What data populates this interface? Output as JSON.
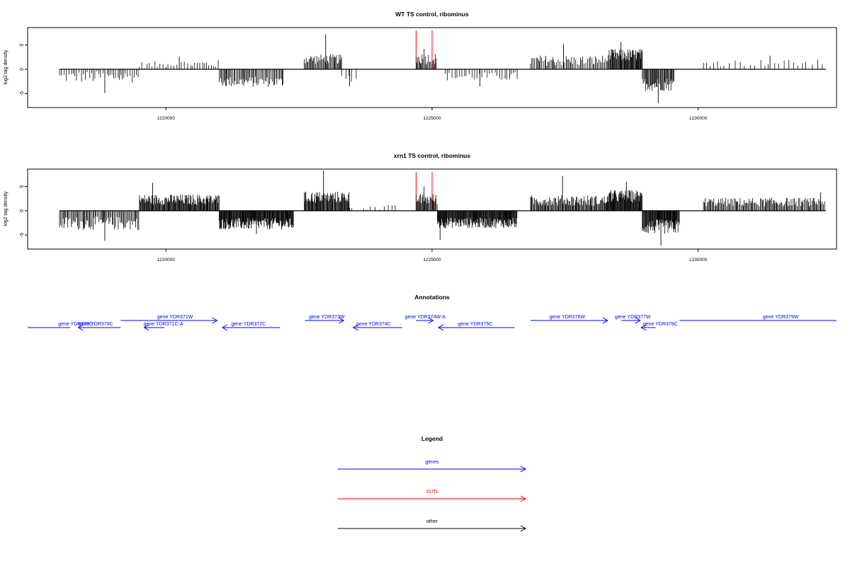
{
  "colors": {
    "gene": "#0000ff",
    "xut": "#ff0000",
    "other": "#000000",
    "axis": "#000000"
  },
  "chart_data": [
    {
      "type": "bar",
      "title": "WT TS control, ribominus",
      "ylabel": "log2 tag density",
      "xlim": [
        1217400,
        1232600
      ],
      "ylim": [
        -7.9,
        8.6
      ],
      "x_ticks": [
        1220000,
        1225000,
        1230000
      ],
      "x_tick_labels": [
        "1220000",
        "1225000",
        "1230000"
      ],
      "y_ticks": [
        -5,
        0,
        5
      ],
      "y_tick_labels": [
        "-5",
        "0",
        "5"
      ],
      "baseline_range": [
        1218000,
        1232400
      ],
      "xut_markers": [
        1224700,
        1225000
      ],
      "segments": [
        {
          "start": 1218000,
          "end": 1219500,
          "mean": -1.6,
          "amp": 1.2,
          "step": 38,
          "peaks": [
            [
              1218850,
              -4.9
            ]
          ]
        },
        {
          "start": 1219500,
          "end": 1220000,
          "mean": 0.9,
          "amp": 0.7,
          "step": 45,
          "peaks": []
        },
        {
          "start": 1220000,
          "end": 1221000,
          "mean": 1.1,
          "amp": 0.8,
          "step": 45,
          "peaks": [
            [
              1220250,
              2.6
            ]
          ]
        },
        {
          "start": 1221000,
          "end": 1222200,
          "mean": -2.6,
          "amp": 1.1,
          "step": 20,
          "peaks": []
        },
        {
          "start": 1222600,
          "end": 1223300,
          "mean": 2.1,
          "amp": 1.0,
          "step": 18,
          "peaks": [
            [
              1223000,
              7.2
            ]
          ]
        },
        {
          "start": 1223300,
          "end": 1223600,
          "mean": -1.8,
          "amp": 0.8,
          "step": 70,
          "peaks": [
            [
              1223450,
              -3.5
            ]
          ]
        },
        {
          "start": 1224700,
          "end": 1225100,
          "mean": 2.2,
          "amp": 1.2,
          "step": 20,
          "peaks": [
            [
              1224850,
              4.2
            ]
          ]
        },
        {
          "start": 1225250,
          "end": 1226600,
          "mean": -1.5,
          "amp": 0.9,
          "step": 45,
          "peaks": [
            [
              1225900,
              -3.5
            ]
          ]
        },
        {
          "start": 1226850,
          "end": 1228300,
          "mean": 1.8,
          "amp": 1.1,
          "step": 25,
          "peaks": [
            [
              1227470,
              5.2
            ]
          ]
        },
        {
          "start": 1228300,
          "end": 1228950,
          "mean": 2.9,
          "amp": 1.3,
          "step": 12,
          "peaks": [
            [
              1228550,
              5.6
            ]
          ]
        },
        {
          "start": 1228950,
          "end": 1229550,
          "mean": -3.1,
          "amp": 1.4,
          "step": 15,
          "peaks": [
            [
              1229250,
              -7.0
            ]
          ]
        },
        {
          "start": 1230100,
          "end": 1232400,
          "mean": 1.3,
          "amp": 0.7,
          "step": 95,
          "peaks": [
            [
              1231350,
              2.8
            ]
          ]
        }
      ]
    },
    {
      "type": "bar",
      "title": "xrn1 TS control, ribominus",
      "ylabel": "log2 tag density",
      "xlim": [
        1217400,
        1232600
      ],
      "ylim": [
        -7.9,
        8.6
      ],
      "x_ticks": [
        1220000,
        1225000,
        1230000
      ],
      "x_tick_labels": [
        "1220000",
        "1225000",
        "1230000"
      ],
      "y_ticks": [
        -5,
        0,
        5
      ],
      "y_tick_labels": [
        "-5",
        "0",
        "5"
      ],
      "baseline_range": [
        1218000,
        1232400
      ],
      "xut_markers": [
        1224700,
        1225000
      ],
      "segments": [
        {
          "start": 1218000,
          "end": 1219500,
          "mean": -2.6,
          "amp": 1.4,
          "step": 20,
          "peaks": [
            [
              1218850,
              -6.2
            ]
          ]
        },
        {
          "start": 1219500,
          "end": 1221000,
          "mean": 2.3,
          "amp": 1.1,
          "step": 12,
          "peaks": [
            [
              1219750,
              5.8
            ]
          ]
        },
        {
          "start": 1221000,
          "end": 1222400,
          "mean": -2.7,
          "amp": 1.2,
          "step": 10,
          "peaks": [
            [
              1221700,
              -4.8
            ]
          ]
        },
        {
          "start": 1222600,
          "end": 1223450,
          "mean": 2.8,
          "amp": 1.2,
          "step": 12,
          "peaks": [
            [
              1222960,
              8.3
            ]
          ]
        },
        {
          "start": 1223450,
          "end": 1224350,
          "mean": 0.6,
          "amp": 0.6,
          "step": 70,
          "peaks": []
        },
        {
          "start": 1224700,
          "end": 1225100,
          "mean": 2.4,
          "amp": 1.1,
          "step": 15,
          "peaks": [
            [
              1224850,
              5.0
            ]
          ]
        },
        {
          "start": 1225100,
          "end": 1226600,
          "mean": -2.5,
          "amp": 1.1,
          "step": 10,
          "peaks": [
            [
              1225150,
              -6.0
            ]
          ]
        },
        {
          "start": 1226850,
          "end": 1228300,
          "mean": 2.1,
          "amp": 1.1,
          "step": 14,
          "peaks": [
            [
              1227450,
              7.2
            ]
          ]
        },
        {
          "start": 1228300,
          "end": 1228950,
          "mean": 3.0,
          "amp": 1.3,
          "step": 10,
          "peaks": [
            [
              1228650,
              6.0
            ]
          ]
        },
        {
          "start": 1228950,
          "end": 1229650,
          "mean": -3.3,
          "amp": 1.5,
          "step": 10,
          "peaks": [
            [
              1229300,
              -7.2
            ]
          ]
        },
        {
          "start": 1230100,
          "end": 1232400,
          "mean": 1.8,
          "amp": 0.9,
          "step": 18,
          "peaks": [
            [
              1232300,
              3.8
            ]
          ]
        }
      ]
    }
  ],
  "annotations": {
    "title": "Annotations",
    "genes": [
      {
        "label": "gene YDR370C",
        "start": 1217400,
        "end": 1218200,
        "strand": "-",
        "row": 2,
        "arrow": false,
        "label_center": 1218300
      },
      {
        "label": "gene YDR370C",
        "start": 1218350,
        "end": 1219150,
        "strand": "-",
        "row": 2,
        "arrow": true,
        "label_center": 1218680
      },
      {
        "label": "gene YDR371W",
        "start": 1219150,
        "end": 1220960,
        "strand": "+",
        "row": 1,
        "arrow": true,
        "label_center": 1220170
      },
      {
        "label": "gene YDR371C-A",
        "start": 1219590,
        "end": 1219970,
        "strand": "-",
        "row": 2,
        "arrow": true,
        "label_center": 1219950
      },
      {
        "label": "gene YDR372C",
        "start": 1221060,
        "end": 1222140,
        "strand": "-",
        "row": 2,
        "arrow": true,
        "label_center": 1221550
      },
      {
        "label": "gene YDR373W",
        "start": 1222610,
        "end": 1223340,
        "strand": "+",
        "row": 1,
        "arrow": true,
        "label_center": 1223020
      },
      {
        "label": "gene YDR374C",
        "start": 1223520,
        "end": 1224440,
        "strand": "-",
        "row": 2,
        "arrow": true,
        "label_center": 1223900
      },
      {
        "label": "gene YDR374W-A",
        "start": 1224700,
        "end": 1225020,
        "strand": "+",
        "row": 1,
        "arrow": true,
        "label_center": 1224870
      },
      {
        "label": "gene YDR375C",
        "start": 1225120,
        "end": 1226550,
        "strand": "-",
        "row": 2,
        "arrow": true,
        "label_center": 1225810
      },
      {
        "label": "gene YDR376W",
        "start": 1226850,
        "end": 1228300,
        "strand": "+",
        "row": 1,
        "arrow": true,
        "label_center": 1227540
      },
      {
        "label": "gene YDR377W",
        "start": 1228560,
        "end": 1228910,
        "strand": "+",
        "row": 1,
        "arrow": true,
        "label_center": 1228770
      },
      {
        "label": "gene YDR378C",
        "start": 1228930,
        "end": 1229200,
        "strand": "-",
        "row": 2,
        "arrow": true,
        "label_center": 1229290
      },
      {
        "label": "gene YDR379W",
        "start": 1229650,
        "end": 1232600,
        "strand": "+",
        "row": 1,
        "arrow": false,
        "label_center": 1231550
      }
    ]
  },
  "legend": {
    "title": "Legend",
    "items": [
      {
        "label": "genes",
        "color": "#0000ff"
      },
      {
        "label": "XUTs",
        "color": "#ff0000"
      },
      {
        "label": "other",
        "color": "#000000"
      }
    ]
  }
}
